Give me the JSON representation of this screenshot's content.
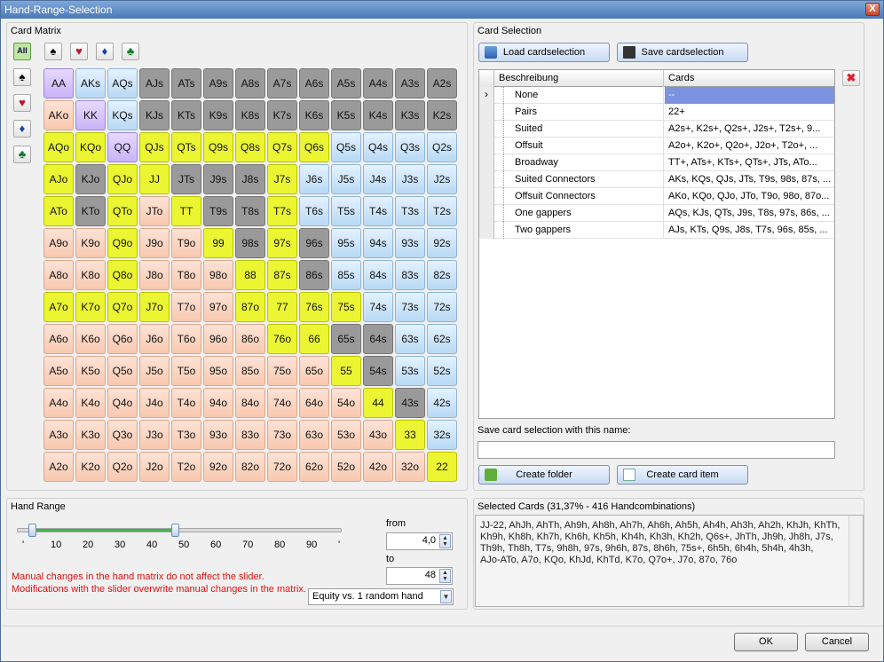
{
  "window": {
    "title": "Hand-Range-Selection",
    "close_label": "X"
  },
  "card_matrix": {
    "title": "Card Matrix",
    "all_label": "All",
    "hands": [
      [
        "AA",
        "AKs",
        "AQs",
        "AJs",
        "ATs",
        "A9s",
        "A8s",
        "A7s",
        "A6s",
        "A5s",
        "A4s",
        "A3s",
        "A2s"
      ],
      [
        "AKo",
        "KK",
        "KQs",
        "KJs",
        "KTs",
        "K9s",
        "K8s",
        "K7s",
        "K6s",
        "K5s",
        "K4s",
        "K3s",
        "K2s"
      ],
      [
        "AQo",
        "KQo",
        "QQ",
        "QJs",
        "QTs",
        "Q9s",
        "Q8s",
        "Q7s",
        "Q6s",
        "Q5s",
        "Q4s",
        "Q3s",
        "Q2s"
      ],
      [
        "AJo",
        "KJo",
        "QJo",
        "JJ",
        "JTs",
        "J9s",
        "J8s",
        "J7s",
        "J6s",
        "J5s",
        "J4s",
        "J3s",
        "J2s"
      ],
      [
        "ATo",
        "KTo",
        "QTo",
        "JTo",
        "TT",
        "T9s",
        "T8s",
        "T7s",
        "T6s",
        "T5s",
        "T4s",
        "T3s",
        "T2s"
      ],
      [
        "A9o",
        "K9o",
        "Q9o",
        "J9o",
        "T9o",
        "99",
        "98s",
        "97s",
        "96s",
        "95s",
        "94s",
        "93s",
        "92s"
      ],
      [
        "A8o",
        "K8o",
        "Q8o",
        "J8o",
        "T8o",
        "98o",
        "88",
        "87s",
        "86s",
        "85s",
        "84s",
        "83s",
        "82s"
      ],
      [
        "A7o",
        "K7o",
        "Q7o",
        "J7o",
        "T7o",
        "97o",
        "87o",
        "77",
        "76s",
        "75s",
        "74s",
        "73s",
        "72s"
      ],
      [
        "A6o",
        "K6o",
        "Q6o",
        "J6o",
        "T6o",
        "96o",
        "86o",
        "76o",
        "66",
        "65s",
        "64s",
        "63s",
        "62s"
      ],
      [
        "A5o",
        "K5o",
        "Q5o",
        "J5o",
        "T5o",
        "95o",
        "85o",
        "75o",
        "65o",
        "55",
        "54s",
        "53s",
        "52s"
      ],
      [
        "A4o",
        "K4o",
        "Q4o",
        "J4o",
        "T4o",
        "94o",
        "84o",
        "74o",
        "64o",
        "54o",
        "44",
        "43s",
        "42s"
      ],
      [
        "A3o",
        "K3o",
        "Q3o",
        "J3o",
        "T3o",
        "93o",
        "83o",
        "73o",
        "63o",
        "53o",
        "43o",
        "33",
        "32s"
      ],
      [
        "A2o",
        "K2o",
        "Q2o",
        "J2o",
        "T2o",
        "92o",
        "82o",
        "72o",
        "62o",
        "52o",
        "42o",
        "32o",
        "22"
      ]
    ],
    "cell_state": [
      [
        "purple",
        "suited",
        "suited",
        "grey",
        "grey",
        "grey",
        "grey",
        "grey",
        "grey",
        "grey",
        "grey",
        "grey",
        "grey"
      ],
      [
        "off",
        "purple",
        "suited",
        "grey",
        "grey",
        "grey",
        "grey",
        "grey",
        "grey",
        "grey",
        "grey",
        "grey",
        "grey"
      ],
      [
        "yellow",
        "yellow",
        "purple",
        "yellow",
        "yellow",
        "yellow",
        "yellow",
        "yellow",
        "yellow",
        "suited",
        "suited",
        "suited",
        "suited"
      ],
      [
        "yellow",
        "grey",
        "yellow",
        "yellow",
        "grey",
        "grey",
        "grey",
        "yellow",
        "suited",
        "suited",
        "suited",
        "suited",
        "suited"
      ],
      [
        "yellow",
        "grey",
        "yellow",
        "off",
        "yellow",
        "grey",
        "grey",
        "yellow",
        "suited",
        "suited",
        "suited",
        "suited",
        "suited"
      ],
      [
        "off",
        "off",
        "yellow",
        "off",
        "off",
        "yellow",
        "grey",
        "yellow",
        "grey",
        "suited",
        "suited",
        "suited",
        "suited"
      ],
      [
        "off",
        "off",
        "yellow",
        "off",
        "off",
        "off",
        "yellow",
        "yellow",
        "grey",
        "suited",
        "suited",
        "suited",
        "suited"
      ],
      [
        "yellow",
        "yellow",
        "yellow",
        "yellow",
        "off",
        "off",
        "yellow",
        "yellow",
        "yellow",
        "yellow",
        "suited",
        "suited",
        "suited"
      ],
      [
        "off",
        "off",
        "off",
        "off",
        "off",
        "off",
        "off",
        "yellow",
        "yellow",
        "grey",
        "grey",
        "suited",
        "suited"
      ],
      [
        "off",
        "off",
        "off",
        "off",
        "off",
        "off",
        "off",
        "off",
        "off",
        "yellow",
        "grey",
        "suited",
        "suited"
      ],
      [
        "off",
        "off",
        "off",
        "off",
        "off",
        "off",
        "off",
        "off",
        "off",
        "off",
        "yellow",
        "grey",
        "suited"
      ],
      [
        "off",
        "off",
        "off",
        "off",
        "off",
        "off",
        "off",
        "off",
        "off",
        "off",
        "off",
        "yellow",
        "suited"
      ],
      [
        "off",
        "off",
        "off",
        "off",
        "off",
        "off",
        "off",
        "off",
        "off",
        "off",
        "off",
        "off",
        "yellow"
      ]
    ]
  },
  "hand_range": {
    "title": "Hand Range",
    "slider_ticks": [
      "'",
      "10",
      "20",
      "30",
      "40",
      "50",
      "60",
      "70",
      "80",
      "90",
      "'"
    ],
    "from_label": "from",
    "from_value": "4,0",
    "to_label": "to",
    "to_value": "48",
    "warning_line1": "Manual changes in the hand matrix do not affect the slider.",
    "warning_line2": "Modifications with the slider overwrite manual changes in the matrix.",
    "equity_option": "Equity vs. 1 random hand"
  },
  "card_selection": {
    "title": "Card Selection",
    "load_label": "Load cardselection",
    "save_label": "Save cardselection",
    "col_desc": "Beschreibung",
    "col_cards": "Cards",
    "rows": [
      {
        "desc": "None",
        "cards": "--"
      },
      {
        "desc": "Pairs",
        "cards": "22+"
      },
      {
        "desc": "Suited",
        "cards": "A2s+, K2s+, Q2s+, J2s+, T2s+, 9..."
      },
      {
        "desc": "Offsuit",
        "cards": "A2o+, K2o+, Q2o+, J2o+, T2o+, ..."
      },
      {
        "desc": "Broadway",
        "cards": "TT+, ATs+, KTs+, QTs+, JTs, ATo..."
      },
      {
        "desc": "Suited Connectors",
        "cards": "AKs, KQs, QJs, JTs, T9s, 98s, 87s, ..."
      },
      {
        "desc": "Offsuit Connectors",
        "cards": "AKo, KQo, QJo, JTo, T9o, 98o, 87o..."
      },
      {
        "desc": "One gappers",
        "cards": "AQs, KJs, QTs, J9s, T8s, 97s, 86s, ..."
      },
      {
        "desc": "Two gappers",
        "cards": "AJs, KTs, Q9s, J8s, T7s, 96s, 85s, ..."
      }
    ],
    "save_name_label": "Save card selection with this name:",
    "save_name_value": "",
    "create_folder_label": "Create folder",
    "create_item_label": "Create card item"
  },
  "selected_cards": {
    "title": "Selected Cards (31,37% - 416 Handcombinations)",
    "lines": [
      "JJ-22, AhJh, AhTh, Ah9h, Ah8h, Ah7h, Ah6h, Ah5h, Ah4h, Ah3h, Ah2h, KhJh, KhTh,",
      "Kh9h, Kh8h, Kh7h, Kh6h, Kh5h, Kh4h, Kh3h, Kh2h, Q6s+, JhTh, Jh9h, Jh8h, J7s,",
      "Th9h, Th8h, T7s, 9h8h, 97s, 9h6h, 87s, 8h6h, 75s+, 6h5h, 6h4h, 5h4h, 4h3h,",
      "AJo-ATo, A7o, KQo, KhJd, KhTd, K7o, Q7o+, J7o, 87o, 76o"
    ]
  },
  "footer": {
    "ok_label": "OK",
    "cancel_label": "Cancel"
  }
}
